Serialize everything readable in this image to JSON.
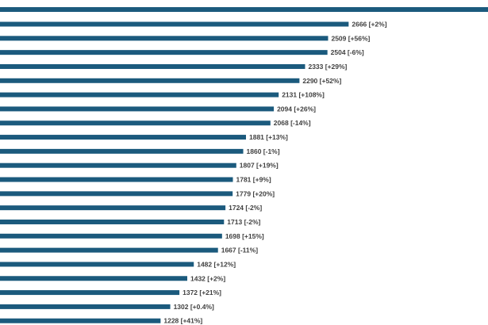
{
  "chart_data": {
    "type": "bar",
    "orientation": "horizontal",
    "color": "#1b5a7d",
    "label_color": "#404040",
    "grid": false,
    "legend": "none",
    "title": "",
    "xlabel": "",
    "ylabel": "",
    "top_bar_clipped": true,
    "values": [
      2666,
      2509,
      2504,
      2333,
      2290,
      2131,
      2094,
      2068,
      1881,
      1860,
      1807,
      1781,
      1779,
      1724,
      1713,
      1698,
      1667,
      1482,
      1432,
      1372,
      1302,
      1228
    ],
    "labels": [
      "2666 [+2%]",
      "2509 [+56%]",
      "2504 [-6%]",
      "2333 [+29%]",
      "2290 [+52%]",
      "2131 [+108%]",
      "2094 [+26%]",
      "2068 [-14%]",
      "1881 [+13%]",
      "1860 [-1%]",
      "1807 [+19%]",
      "1781 [+9%]",
      "1779 [+20%]",
      "1724 [-2%]",
      "1713 [-2%]",
      "1698 [+15%]",
      "1667 [-11%]",
      "1482 [+12%]",
      "1432 [+2%]",
      "1372 [+21%]",
      "1302 [+0.4%]",
      "1228 [+41%]"
    ]
  }
}
